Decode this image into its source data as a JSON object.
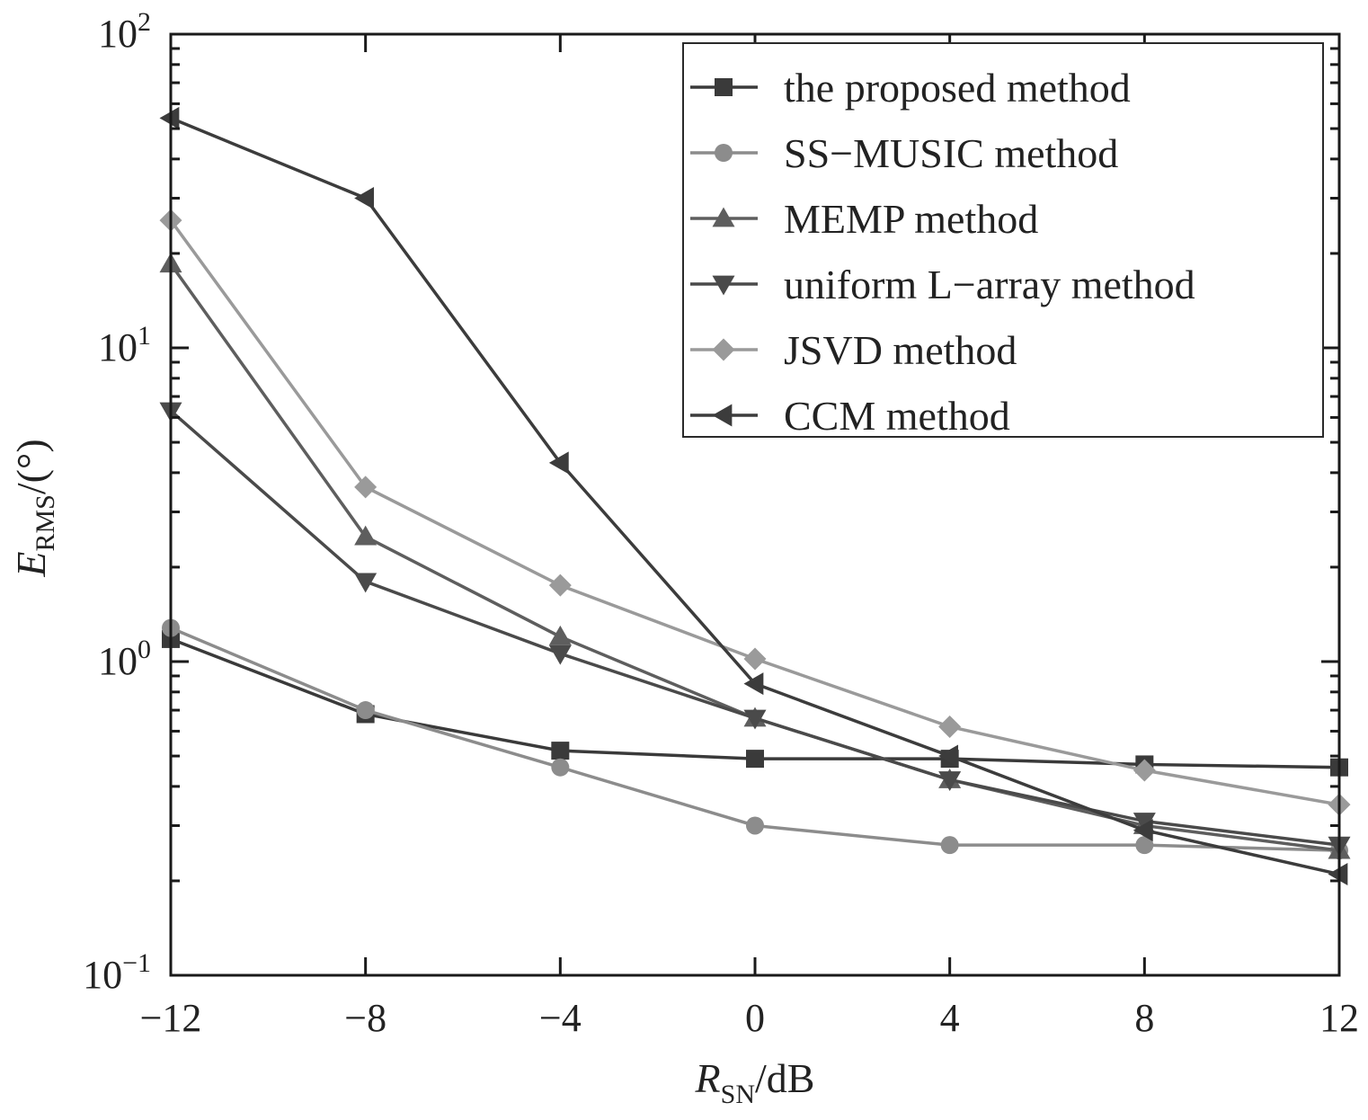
{
  "chart_data": {
    "type": "line",
    "title": "",
    "xlabel": {
      "main": "R",
      "sub": "SN",
      "unit": "/dB"
    },
    "ylabel": {
      "main": "E",
      "sub": "RMS",
      "unit": "/(°)"
    },
    "x": [
      -12,
      -8,
      -4,
      0,
      4,
      8,
      12
    ],
    "x_tick_labels": [
      "−12",
      "−8",
      "−4",
      "0",
      "4",
      "8",
      "12"
    ],
    "xlim": [
      -12,
      12
    ],
    "yscale": "log",
    "ylim": [
      0.1,
      100
    ],
    "y_tick_labels": [
      {
        "value": 100,
        "base": "10",
        "exp": "2"
      },
      {
        "value": 10,
        "base": "10",
        "exp": "1"
      },
      {
        "value": 1,
        "base": "10",
        "exp": "0"
      },
      {
        "value": 0.1,
        "base": "10",
        "exp": "−1"
      }
    ],
    "grid": false,
    "legend_position": "top-right",
    "series": [
      {
        "name": "the proposed method",
        "marker": "square",
        "color": "#3a3a3a",
        "values": [
          1.18,
          0.68,
          0.52,
          0.49,
          0.49,
          0.47,
          0.46
        ]
      },
      {
        "name": "SS−MUSIC method",
        "marker": "circle",
        "color": "#8c8c8c",
        "values": [
          1.28,
          0.7,
          0.46,
          0.3,
          0.26,
          0.26,
          0.25
        ]
      },
      {
        "name": "MEMP method",
        "marker": "triangle-up",
        "color": "#5e5e5e",
        "values": [
          18.5,
          2.5,
          1.2,
          0.66,
          0.42,
          0.3,
          0.25
        ]
      },
      {
        "name": "uniform L−array method",
        "marker": "triangle-down",
        "color": "#4a4a4a",
        "values": [
          6.3,
          1.8,
          1.06,
          0.66,
          0.42,
          0.31,
          0.26
        ]
      },
      {
        "name": "JSVD method",
        "marker": "diamond",
        "color": "#9a9a9a",
        "values": [
          25.5,
          3.6,
          1.75,
          1.02,
          0.62,
          0.45,
          0.35
        ]
      },
      {
        "name": "CCM method",
        "marker": "triangle-left",
        "color": "#3c3c3c",
        "values": [
          54,
          30,
          4.3,
          0.85,
          0.5,
          0.29,
          0.21
        ]
      }
    ]
  }
}
